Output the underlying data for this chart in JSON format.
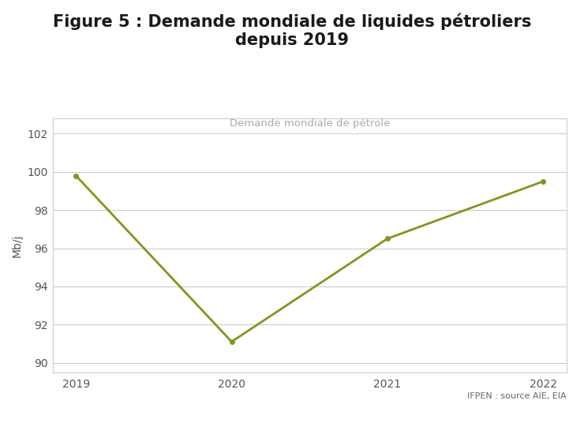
{
  "title_line1": "Figure 5 : Demande mondiale de liquides pétroliers",
  "title_line2": "depuis 2019",
  "title_fontsize": 15,
  "title_fontweight": "bold",
  "ylabel": "Mb/j",
  "ylabel_fontsize": 10,
  "annotation_text": "Demande mondiale de pétrole",
  "annotation_color": "#aaaaaa",
  "annotation_fontsize": 9.5,
  "source_text": "IFPEN : source AIE, EIA",
  "source_fontsize": 8,
  "source_color": "#666666",
  "x": [
    2019,
    2020,
    2021,
    2022
  ],
  "y": [
    99.8,
    91.1,
    96.5,
    99.5
  ],
  "line_color": "#7a9a1f",
  "line_width": 2.0,
  "marker": "o",
  "marker_size": 4,
  "ylim": [
    89.5,
    102.8
  ],
  "yticks": [
    90,
    92,
    94,
    96,
    98,
    100,
    102
  ],
  "xticks": [
    2019,
    2020,
    2021,
    2022
  ],
  "background_color": "#ffffff",
  "plot_bg_color": "#ffffff",
  "grid_color": "#cccccc",
  "grid_linewidth": 0.8,
  "border_color": "#cccccc",
  "tick_color": "#555555",
  "tick_fontsize": 10,
  "title_color": "#1a1a1a"
}
